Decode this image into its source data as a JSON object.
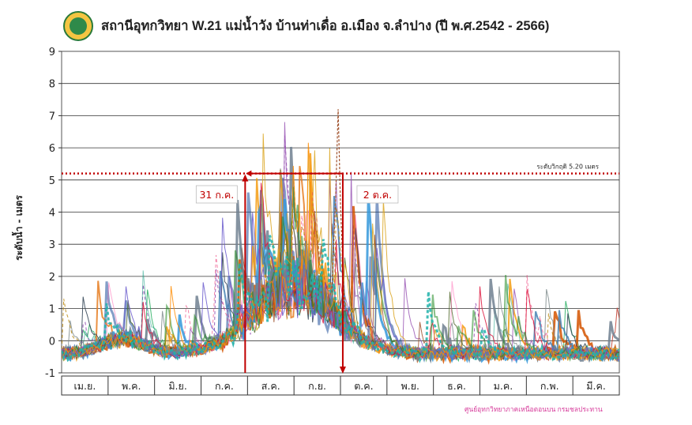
{
  "title": "สถานีอุทกวิทยา W.21 แม่น้ำวัง บ้านท่าเดื่อ  อ.เมือง จ.ลำปาง (ปี พ.ศ.2542 - 2566)",
  "credit": "ศูนย์อุทกวิทยาภาคเหนือตอนบน กรมชลประทาน",
  "chart_data": {
    "type": "line",
    "title": "สถานีอุทกวิทยา W.21 แม่น้ำวัง บ้านท่าเดื่อ  อ.เมือง จ.ลำปาง (ปี พ.ศ.2542 - 2566)",
    "ylabel": "ระดับน้ำ - เมตร",
    "xlabel": "",
    "ylim": [
      -1,
      9
    ],
    "yticks": [
      "-1",
      "0",
      "1",
      "2",
      "3",
      "4",
      "5",
      "6",
      "7",
      "8",
      "9"
    ],
    "categories": [
      "เม.ย.",
      "พ.ค.",
      "มิ.ย.",
      "ก.ค.",
      "ส.ค.",
      "ก.ย.",
      "ต.ค.",
      "พ.ย.",
      "ธ.ค.",
      "ม.ค.",
      "ก.พ.",
      "มี.ค."
    ],
    "grid": true,
    "critical_level": {
      "value": 5.2,
      "label": "ระดับวิกฤติ 5.20  เมตร",
      "color": "#c00000"
    },
    "annotations": [
      {
        "label": "31 ก.ค.",
        "month_index": 4,
        "color": "#c00000"
      },
      {
        "label": "2 ต.ค.",
        "month_index": 6.05,
        "color": "#c00000"
      }
    ],
    "series_colors": [
      "#1f4e9a",
      "#c0392b",
      "#27ae60",
      "#8e44ad",
      "#e67e22",
      "#16a085",
      "#d35400",
      "#2c3e50",
      "#f39c12",
      "#7f8c8d",
      "#e91e63",
      "#9b59b6",
      "#3498db",
      "#a0522d",
      "#556b2f",
      "#ff69b4",
      "#4682b4",
      "#b8860b",
      "#708090",
      "#dc143c",
      "#228b22",
      "#daa520",
      "#6a5acd",
      "#ff8c00",
      "#20b2aa"
    ],
    "series_count": 25
  }
}
